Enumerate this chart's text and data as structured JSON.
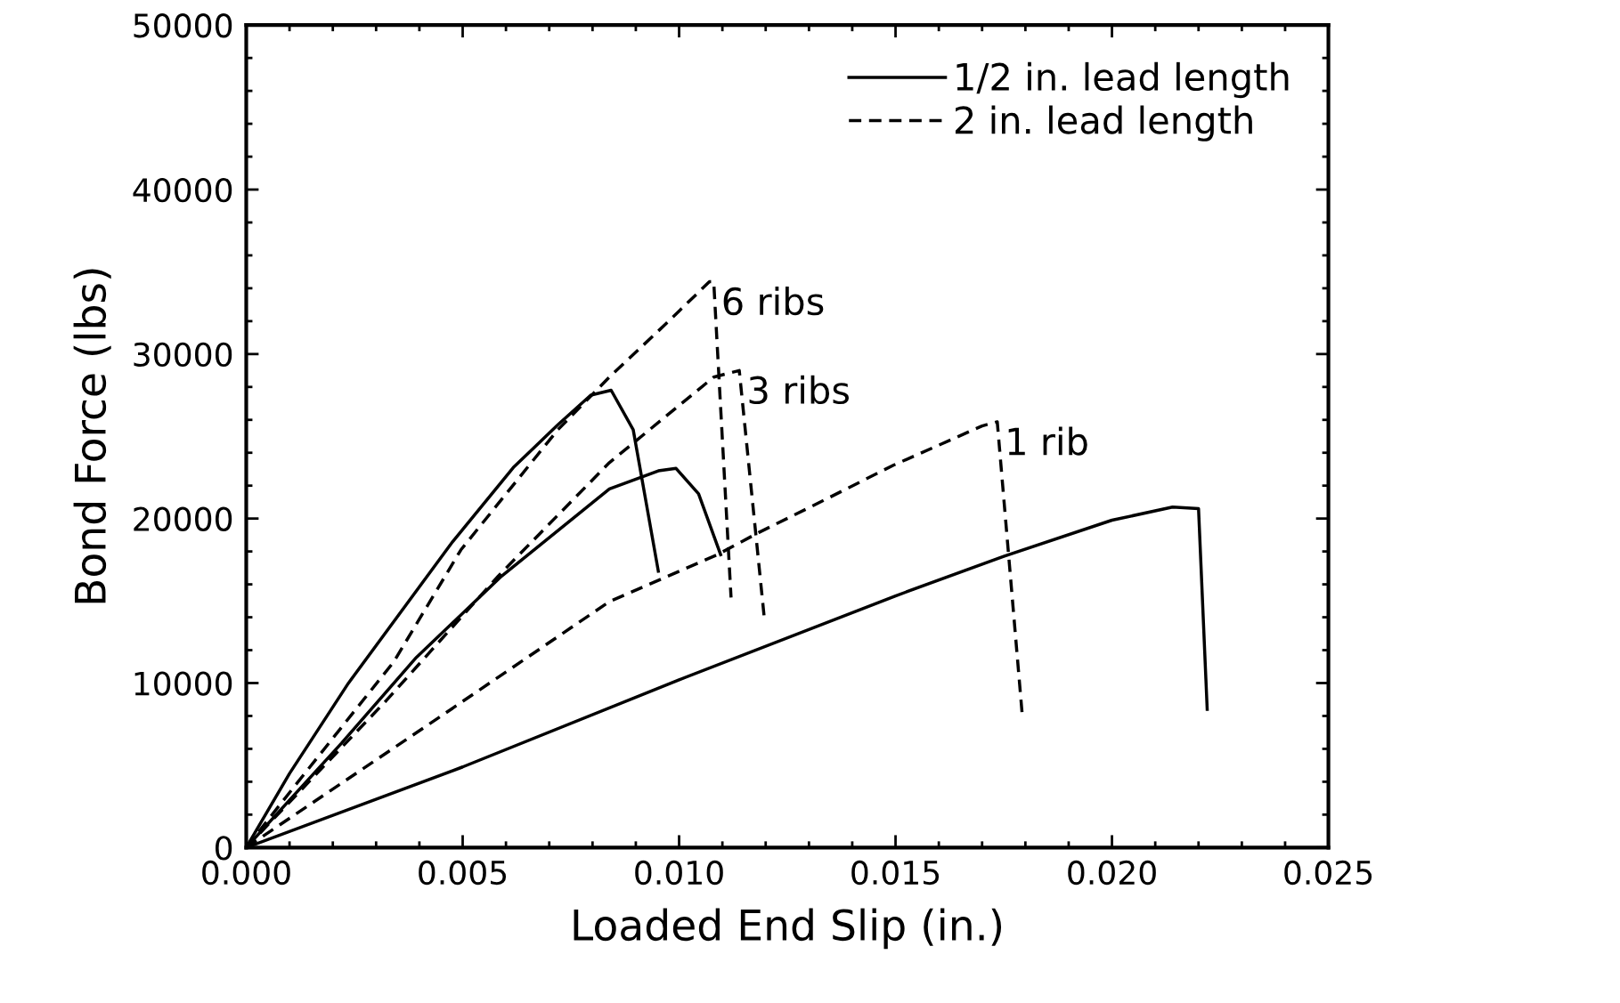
{
  "chart_data": {
    "type": "line",
    "xlabel": "Loaded End Slip (in.)",
    "ylabel": "Bond Force (lbs)",
    "xlim": [
      0,
      0.025
    ],
    "ylim": [
      0,
      50000
    ],
    "xticks": [
      {
        "value": 0,
        "label": "0.000"
      },
      {
        "value": 0.005,
        "label": "0.005"
      },
      {
        "value": 0.01,
        "label": "0.010"
      },
      {
        "value": 0.015,
        "label": "0.015"
      },
      {
        "value": 0.02,
        "label": "0.020"
      },
      {
        "value": 0.025,
        "label": "0.025"
      }
    ],
    "yticks": [
      0,
      10000,
      20000,
      30000,
      40000,
      50000
    ],
    "grid": false,
    "legend": "top right",
    "marker": "none",
    "series": [
      {
        "name": "1/2 in. lead length",
        "color": "#000000",
        "line_style": "solid",
        "x": [
          0,
          0.001,
          0.00236,
          0.00477,
          0.00617,
          0.0072,
          0.00796,
          0.00843,
          0.00894,
          0.00952
        ],
        "values": [
          0,
          4500,
          9990,
          18600,
          23100,
          25700,
          27500,
          27800,
          25400,
          16800
        ]
      },
      {
        "name": "2 in. lead length",
        "color": "#000000",
        "line_style": "dashed",
        "x": [
          0,
          0.00109,
          0.00341,
          0.00496,
          0.0072,
          0.00839,
          0.00968,
          0.0107,
          0.0108,
          0.0112
        ],
        "values": [
          0,
          3640,
          11300,
          18100,
          25400,
          28600,
          31800,
          34400,
          34400,
          15200
        ]
      },
      {
        "color": "#000000",
        "line_style": "solid",
        "x": [
          0,
          0.0022,
          0.00393,
          0.0059,
          0.00839,
          0.00952,
          0.00993,
          0.01045,
          0.01096
        ],
        "values": [
          0,
          6340,
          11560,
          16500,
          21800,
          22900,
          23050,
          21500,
          17800
        ]
      },
      {
        "color": "#000000",
        "line_style": "dashed",
        "x": [
          0,
          0.00323,
          0.00582,
          0.00839,
          0.0108,
          0.01139,
          0.01197
        ],
        "values": [
          0,
          8920,
          16500,
          23400,
          28600,
          29000,
          13900
        ]
      },
      {
        "color": "#000000",
        "line_style": "solid",
        "x": [
          0,
          0.005,
          0.01,
          0.015,
          0.0175,
          0.02,
          0.0214,
          0.022,
          0.0222
        ],
        "values": [
          0,
          4900,
          10200,
          15300,
          17700,
          19900,
          20700,
          20600,
          8400
        ]
      },
      {
        "color": "#000000",
        "line_style": "dashed",
        "x": [
          0,
          0.0046,
          0.00839,
          0.01088,
          0.01184,
          0.01291,
          0.01495,
          0.017,
          0.01735,
          0.01793
        ],
        "values": [
          0,
          8170,
          14950,
          17800,
          19150,
          20540,
          23240,
          25630,
          25880,
          7980
        ]
      }
    ],
    "annotations": [
      {
        "text": "6 ribs",
        "x": 0.0108,
        "y": 34400
      },
      {
        "text": "3 ribs",
        "x": 0.01139,
        "y": 29000
      },
      {
        "text": "1 rib",
        "x": 0.01735,
        "y": 25880
      }
    ]
  }
}
